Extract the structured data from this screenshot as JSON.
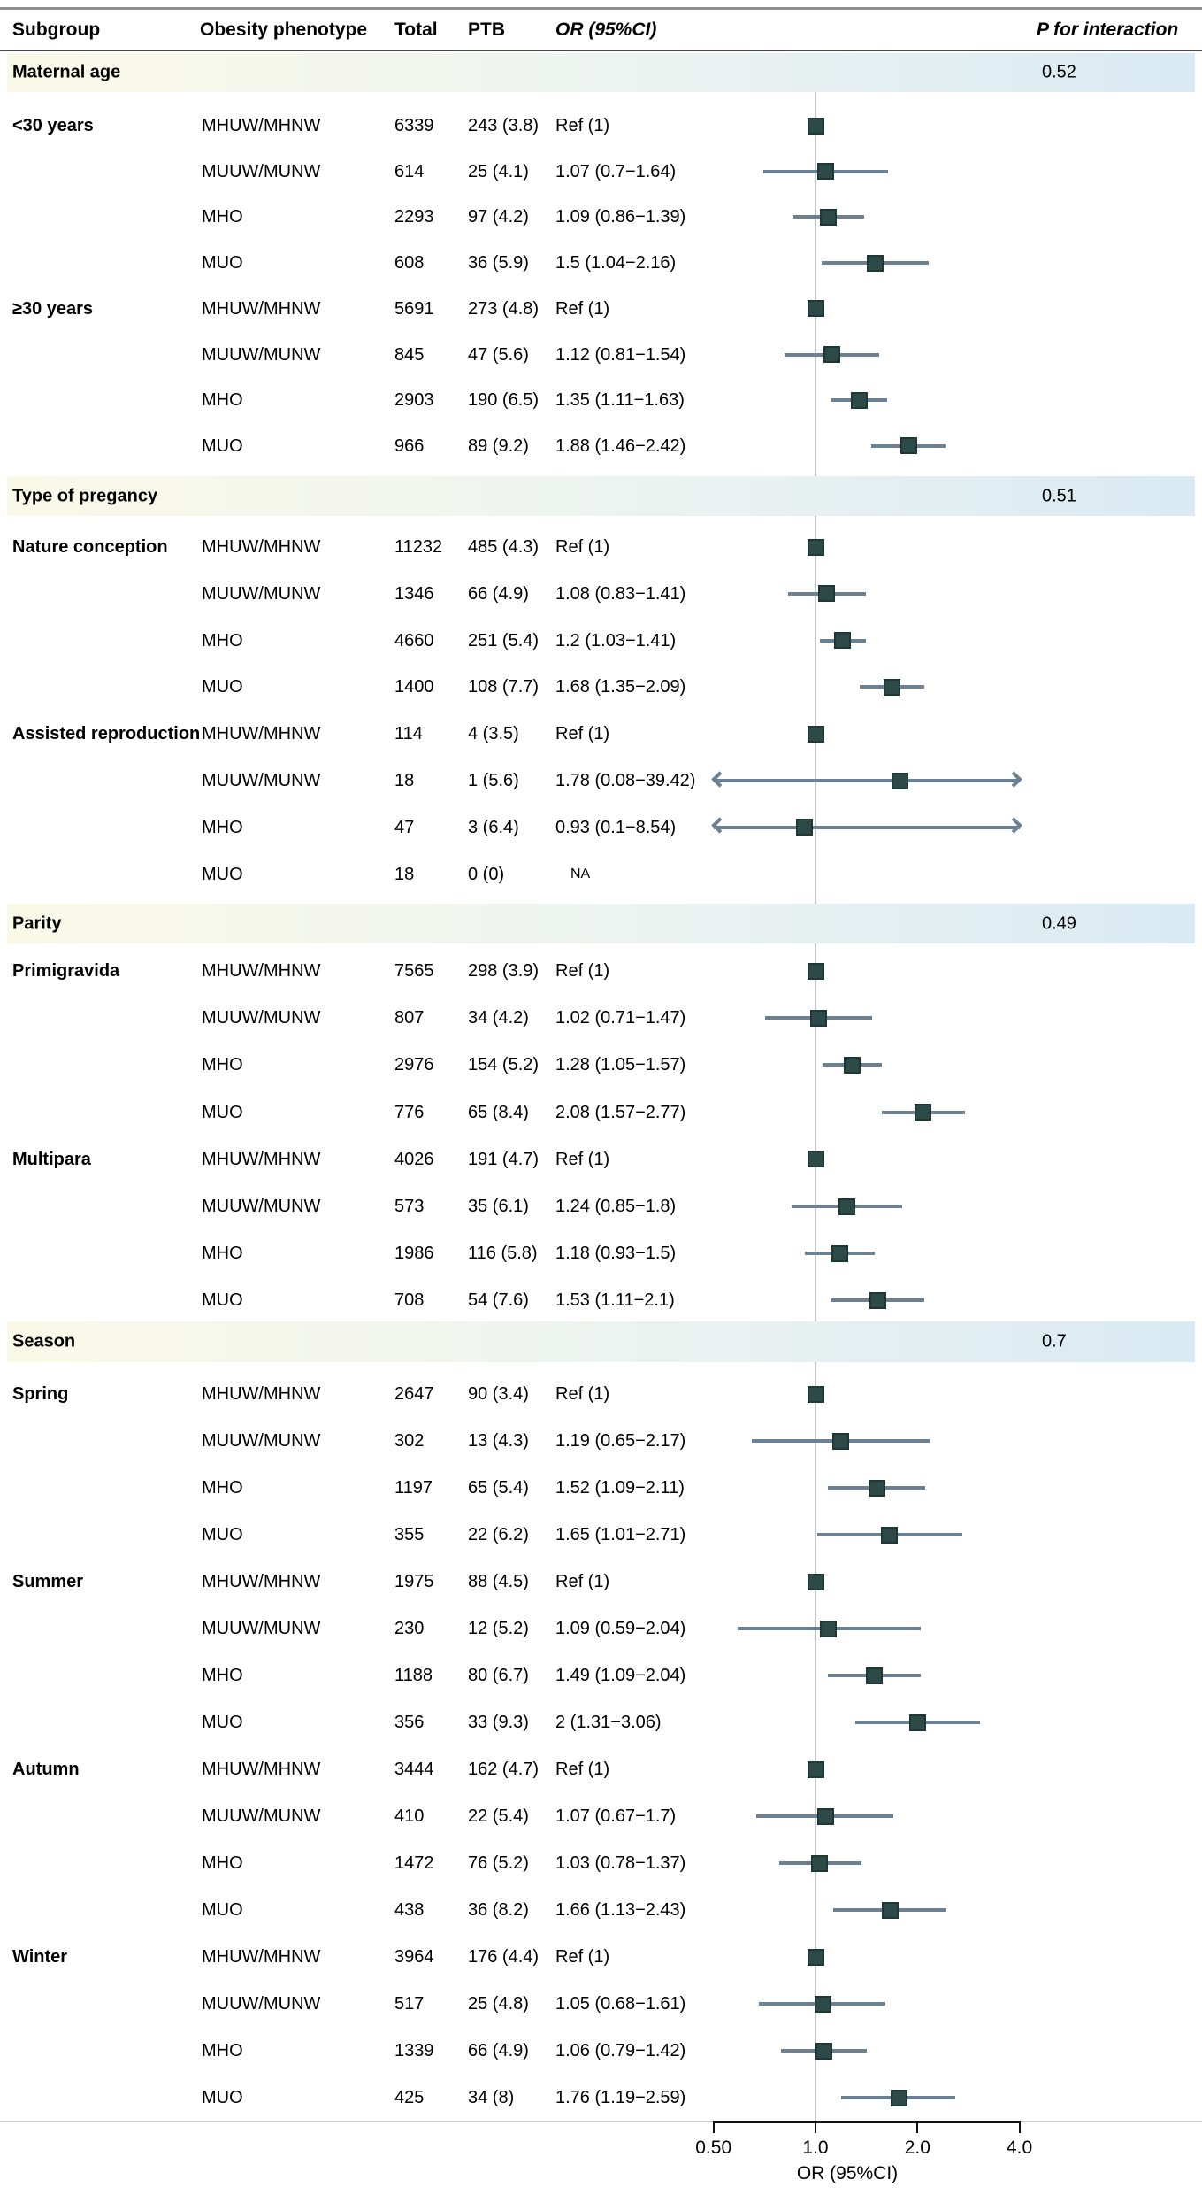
{
  "columns": {
    "subgroup": "Subgroup",
    "phenotype": "Obesity phenotype",
    "total": "Total",
    "ptb": "PTB",
    "or": "OR (95%CI)",
    "p": "P for interaction"
  },
  "axis": {
    "label": "OR (95%CI)",
    "scale": "log2",
    "range": [
      0.5,
      4.0
    ],
    "ticks": [
      {
        "value": 0.5,
        "label": "0.50"
      },
      {
        "value": 1.0,
        "label": "1.0"
      },
      {
        "value": 2.0,
        "label": "2.0"
      },
      {
        "value": 4.0,
        "label": "4.0"
      }
    ]
  },
  "colors": {
    "marker_fill": "#2d4a49",
    "marker_border": "#1e3836",
    "ci_line": "#6c8093",
    "reference_line": "#c4c4c4",
    "band_gradient_left": "#faf9e8",
    "band_gradient_right": "#d9eaf3"
  },
  "chart_data": {
    "type": "forest",
    "reference_value": 1.0,
    "sections": [
      {
        "label": "Maternal age",
        "p_interaction": "0.52",
        "groups": [
          {
            "label": "<30 years",
            "rows": [
              {
                "phenotype": "MHUW/MHNW",
                "total": "6339",
                "ptb": "243 (3.8)",
                "or_text": "Ref (1)",
                "or": 1.0,
                "lo": null,
                "hi": null,
                "ref": true,
                "na": false
              },
              {
                "phenotype": "MUUW/MUNW",
                "total": "614",
                "ptb": "25 (4.1)",
                "or_text": "1.07 (0.7−1.64)",
                "or": 1.07,
                "lo": 0.7,
                "hi": 1.64,
                "ref": false,
                "na": false
              },
              {
                "phenotype": "MHO",
                "total": "2293",
                "ptb": "97 (4.2)",
                "or_text": "1.09 (0.86−1.39)",
                "or": 1.09,
                "lo": 0.86,
                "hi": 1.39,
                "ref": false,
                "na": false
              },
              {
                "phenotype": "MUO",
                "total": "608",
                "ptb": "36 (5.9)",
                "or_text": "1.5 (1.04−2.16)",
                "or": 1.5,
                "lo": 1.04,
                "hi": 2.16,
                "ref": false,
                "na": false
              }
            ]
          },
          {
            "label": "≥30 years",
            "rows": [
              {
                "phenotype": "MHUW/MHNW",
                "total": "5691",
                "ptb": "273 (4.8)",
                "or_text": "Ref (1)",
                "or": 1.0,
                "lo": null,
                "hi": null,
                "ref": true,
                "na": false
              },
              {
                "phenotype": "MUUW/MUNW",
                "total": "845",
                "ptb": "47 (5.6)",
                "or_text": "1.12 (0.81−1.54)",
                "or": 1.12,
                "lo": 0.81,
                "hi": 1.54,
                "ref": false,
                "na": false
              },
              {
                "phenotype": "MHO",
                "total": "2903",
                "ptb": "190 (6.5)",
                "or_text": "1.35 (1.11−1.63)",
                "or": 1.35,
                "lo": 1.11,
                "hi": 1.63,
                "ref": false,
                "na": false
              },
              {
                "phenotype": "MUO",
                "total": "966",
                "ptb": "89 (9.2)",
                "or_text": "1.88 (1.46−2.42)",
                "or": 1.88,
                "lo": 1.46,
                "hi": 2.42,
                "ref": false,
                "na": false
              }
            ]
          }
        ]
      },
      {
        "label": "Type of pregancy",
        "p_interaction": "0.51",
        "groups": [
          {
            "label": "Nature conception",
            "rows": [
              {
                "phenotype": "MHUW/MHNW",
                "total": "11232",
                "ptb": "485 (4.3)",
                "or_text": "Ref (1)",
                "or": 1.0,
                "lo": null,
                "hi": null,
                "ref": true,
                "na": false
              },
              {
                "phenotype": "MUUW/MUNW",
                "total": "1346",
                "ptb": "66 (4.9)",
                "or_text": "1.08 (0.83−1.41)",
                "or": 1.08,
                "lo": 0.83,
                "hi": 1.41,
                "ref": false,
                "na": false
              },
              {
                "phenotype": "MHO",
                "total": "4660",
                "ptb": "251 (5.4)",
                "or_text": "1.2 (1.03−1.41)",
                "or": 1.2,
                "lo": 1.03,
                "hi": 1.41,
                "ref": false,
                "na": false
              },
              {
                "phenotype": "MUO",
                "total": "1400",
                "ptb": "108 (7.7)",
                "or_text": "1.68 (1.35−2.09)",
                "or": 1.68,
                "lo": 1.35,
                "hi": 2.09,
                "ref": false,
                "na": false
              }
            ]
          },
          {
            "label": "Assisted reproduction",
            "rows": [
              {
                "phenotype": "MHUW/MHNW",
                "total": "114",
                "ptb": "4 (3.5)",
                "or_text": "Ref (1)",
                "or": 1.0,
                "lo": null,
                "hi": null,
                "ref": true,
                "na": false
              },
              {
                "phenotype": "MUUW/MUNW",
                "total": "18",
                "ptb": "1 (5.6)",
                "or_text": "1.78 (0.08−39.42)",
                "or": 1.78,
                "lo": 0.08,
                "hi": 39.42,
                "ref": false,
                "na": false
              },
              {
                "phenotype": "MHO",
                "total": "47",
                "ptb": "3 (6.4)",
                "or_text": "0.93 (0.1−8.54)",
                "or": 0.93,
                "lo": 0.1,
                "hi": 8.54,
                "ref": false,
                "na": false
              },
              {
                "phenotype": "MUO",
                "total": "18",
                "ptb": "0 (0)",
                "or_text": "NA",
                "or": null,
                "lo": null,
                "hi": null,
                "ref": false,
                "na": true
              }
            ]
          }
        ]
      },
      {
        "label": "Parity",
        "p_interaction": "0.49",
        "groups": [
          {
            "label": "Primigravida",
            "rows": [
              {
                "phenotype": "MHUW/MHNW",
                "total": "7565",
                "ptb": "298 (3.9)",
                "or_text": "Ref (1)",
                "or": 1.0,
                "lo": null,
                "hi": null,
                "ref": true,
                "na": false
              },
              {
                "phenotype": "MUUW/MUNW",
                "total": "807",
                "ptb": "34 (4.2)",
                "or_text": "1.02 (0.71−1.47)",
                "or": 1.02,
                "lo": 0.71,
                "hi": 1.47,
                "ref": false,
                "na": false
              },
              {
                "phenotype": "MHO",
                "total": "2976",
                "ptb": "154 (5.2)",
                "or_text": "1.28 (1.05−1.57)",
                "or": 1.28,
                "lo": 1.05,
                "hi": 1.57,
                "ref": false,
                "na": false
              },
              {
                "phenotype": "MUO",
                "total": "776",
                "ptb": "65 (8.4)",
                "or_text": "2.08 (1.57−2.77)",
                "or": 2.08,
                "lo": 1.57,
                "hi": 2.77,
                "ref": false,
                "na": false
              }
            ]
          },
          {
            "label": "Multipara",
            "rows": [
              {
                "phenotype": "MHUW/MHNW",
                "total": "4026",
                "ptb": "191 (4.7)",
                "or_text": "Ref (1)",
                "or": 1.0,
                "lo": null,
                "hi": null,
                "ref": true,
                "na": false
              },
              {
                "phenotype": "MUUW/MUNW",
                "total": "573",
                "ptb": "35 (6.1)",
                "or_text": "1.24 (0.85−1.8)",
                "or": 1.24,
                "lo": 0.85,
                "hi": 1.8,
                "ref": false,
                "na": false
              },
              {
                "phenotype": "MHO",
                "total": "1986",
                "ptb": "116 (5.8)",
                "or_text": "1.18 (0.93−1.5)",
                "or": 1.18,
                "lo": 0.93,
                "hi": 1.5,
                "ref": false,
                "na": false
              },
              {
                "phenotype": "MUO",
                "total": "708",
                "ptb": "54 (7.6)",
                "or_text": "1.53 (1.11−2.1)",
                "or": 1.53,
                "lo": 1.11,
                "hi": 2.1,
                "ref": false,
                "na": false
              }
            ]
          }
        ]
      },
      {
        "label": "Season",
        "p_interaction": "0.7",
        "groups": [
          {
            "label": "Spring",
            "rows": [
              {
                "phenotype": "MHUW/MHNW",
                "total": "2647",
                "ptb": "90 (3.4)",
                "or_text": "Ref (1)",
                "or": 1.0,
                "lo": null,
                "hi": null,
                "ref": true,
                "na": false
              },
              {
                "phenotype": "MUUW/MUNW",
                "total": "302",
                "ptb": "13 (4.3)",
                "or_text": "1.19 (0.65−2.17)",
                "or": 1.19,
                "lo": 0.65,
                "hi": 2.17,
                "ref": false,
                "na": false
              },
              {
                "phenotype": "MHO",
                "total": "1197",
                "ptb": "65 (5.4)",
                "or_text": "1.52 (1.09−2.11)",
                "or": 1.52,
                "lo": 1.09,
                "hi": 2.11,
                "ref": false,
                "na": false
              },
              {
                "phenotype": "MUO",
                "total": "355",
                "ptb": "22 (6.2)",
                "or_text": "1.65 (1.01−2.71)",
                "or": 1.65,
                "lo": 1.01,
                "hi": 2.71,
                "ref": false,
                "na": false
              }
            ]
          },
          {
            "label": "Summer",
            "rows": [
              {
                "phenotype": "MHUW/MHNW",
                "total": "1975",
                "ptb": "88 (4.5)",
                "or_text": "Ref (1)",
                "or": 1.0,
                "lo": null,
                "hi": null,
                "ref": true,
                "na": false
              },
              {
                "phenotype": "MUUW/MUNW",
                "total": "230",
                "ptb": "12 (5.2)",
                "or_text": "1.09 (0.59−2.04)",
                "or": 1.09,
                "lo": 0.59,
                "hi": 2.04,
                "ref": false,
                "na": false
              },
              {
                "phenotype": "MHO",
                "total": "1188",
                "ptb": "80 (6.7)",
                "or_text": "1.49 (1.09−2.04)",
                "or": 1.49,
                "lo": 1.09,
                "hi": 2.04,
                "ref": false,
                "na": false
              },
              {
                "phenotype": "MUO",
                "total": "356",
                "ptb": "33 (9.3)",
                "or_text": "2 (1.31−3.06)",
                "or": 2.0,
                "lo": 1.31,
                "hi": 3.06,
                "ref": false,
                "na": false
              }
            ]
          },
          {
            "label": "Autumn",
            "rows": [
              {
                "phenotype": "MHUW/MHNW",
                "total": "3444",
                "ptb": "162 (4.7)",
                "or_text": "Ref (1)",
                "or": 1.0,
                "lo": null,
                "hi": null,
                "ref": true,
                "na": false
              },
              {
                "phenotype": "MUUW/MUNW",
                "total": "410",
                "ptb": "22 (5.4)",
                "or_text": "1.07 (0.67−1.7)",
                "or": 1.07,
                "lo": 0.67,
                "hi": 1.7,
                "ref": false,
                "na": false
              },
              {
                "phenotype": "MHO",
                "total": "1472",
                "ptb": "76 (5.2)",
                "or_text": "1.03 (0.78−1.37)",
                "or": 1.03,
                "lo": 0.78,
                "hi": 1.37,
                "ref": false,
                "na": false
              },
              {
                "phenotype": "MUO",
                "total": "438",
                "ptb": "36 (8.2)",
                "or_text": "1.66 (1.13−2.43)",
                "or": 1.66,
                "lo": 1.13,
                "hi": 2.43,
                "ref": false,
                "na": false
              }
            ]
          },
          {
            "label": "Winter",
            "rows": [
              {
                "phenotype": "MHUW/MHNW",
                "total": "3964",
                "ptb": "176 (4.4)",
                "or_text": "Ref (1)",
                "or": 1.0,
                "lo": null,
                "hi": null,
                "ref": true,
                "na": false
              },
              {
                "phenotype": "MUUW/MUNW",
                "total": "517",
                "ptb": "25 (4.8)",
                "or_text": "1.05 (0.68−1.61)",
                "or": 1.05,
                "lo": 0.68,
                "hi": 1.61,
                "ref": false,
                "na": false
              },
              {
                "phenotype": "MHO",
                "total": "1339",
                "ptb": "66 (4.9)",
                "or_text": "1.06 (0.79−1.42)",
                "or": 1.06,
                "lo": 0.79,
                "hi": 1.42,
                "ref": false,
                "na": false
              },
              {
                "phenotype": "MUO",
                "total": "425",
                "ptb": "34 (8)",
                "or_text": "1.76 (1.19−2.59)",
                "or": 1.76,
                "lo": 1.19,
                "hi": 2.59,
                "ref": false,
                "na": false
              }
            ]
          }
        ]
      }
    ]
  }
}
